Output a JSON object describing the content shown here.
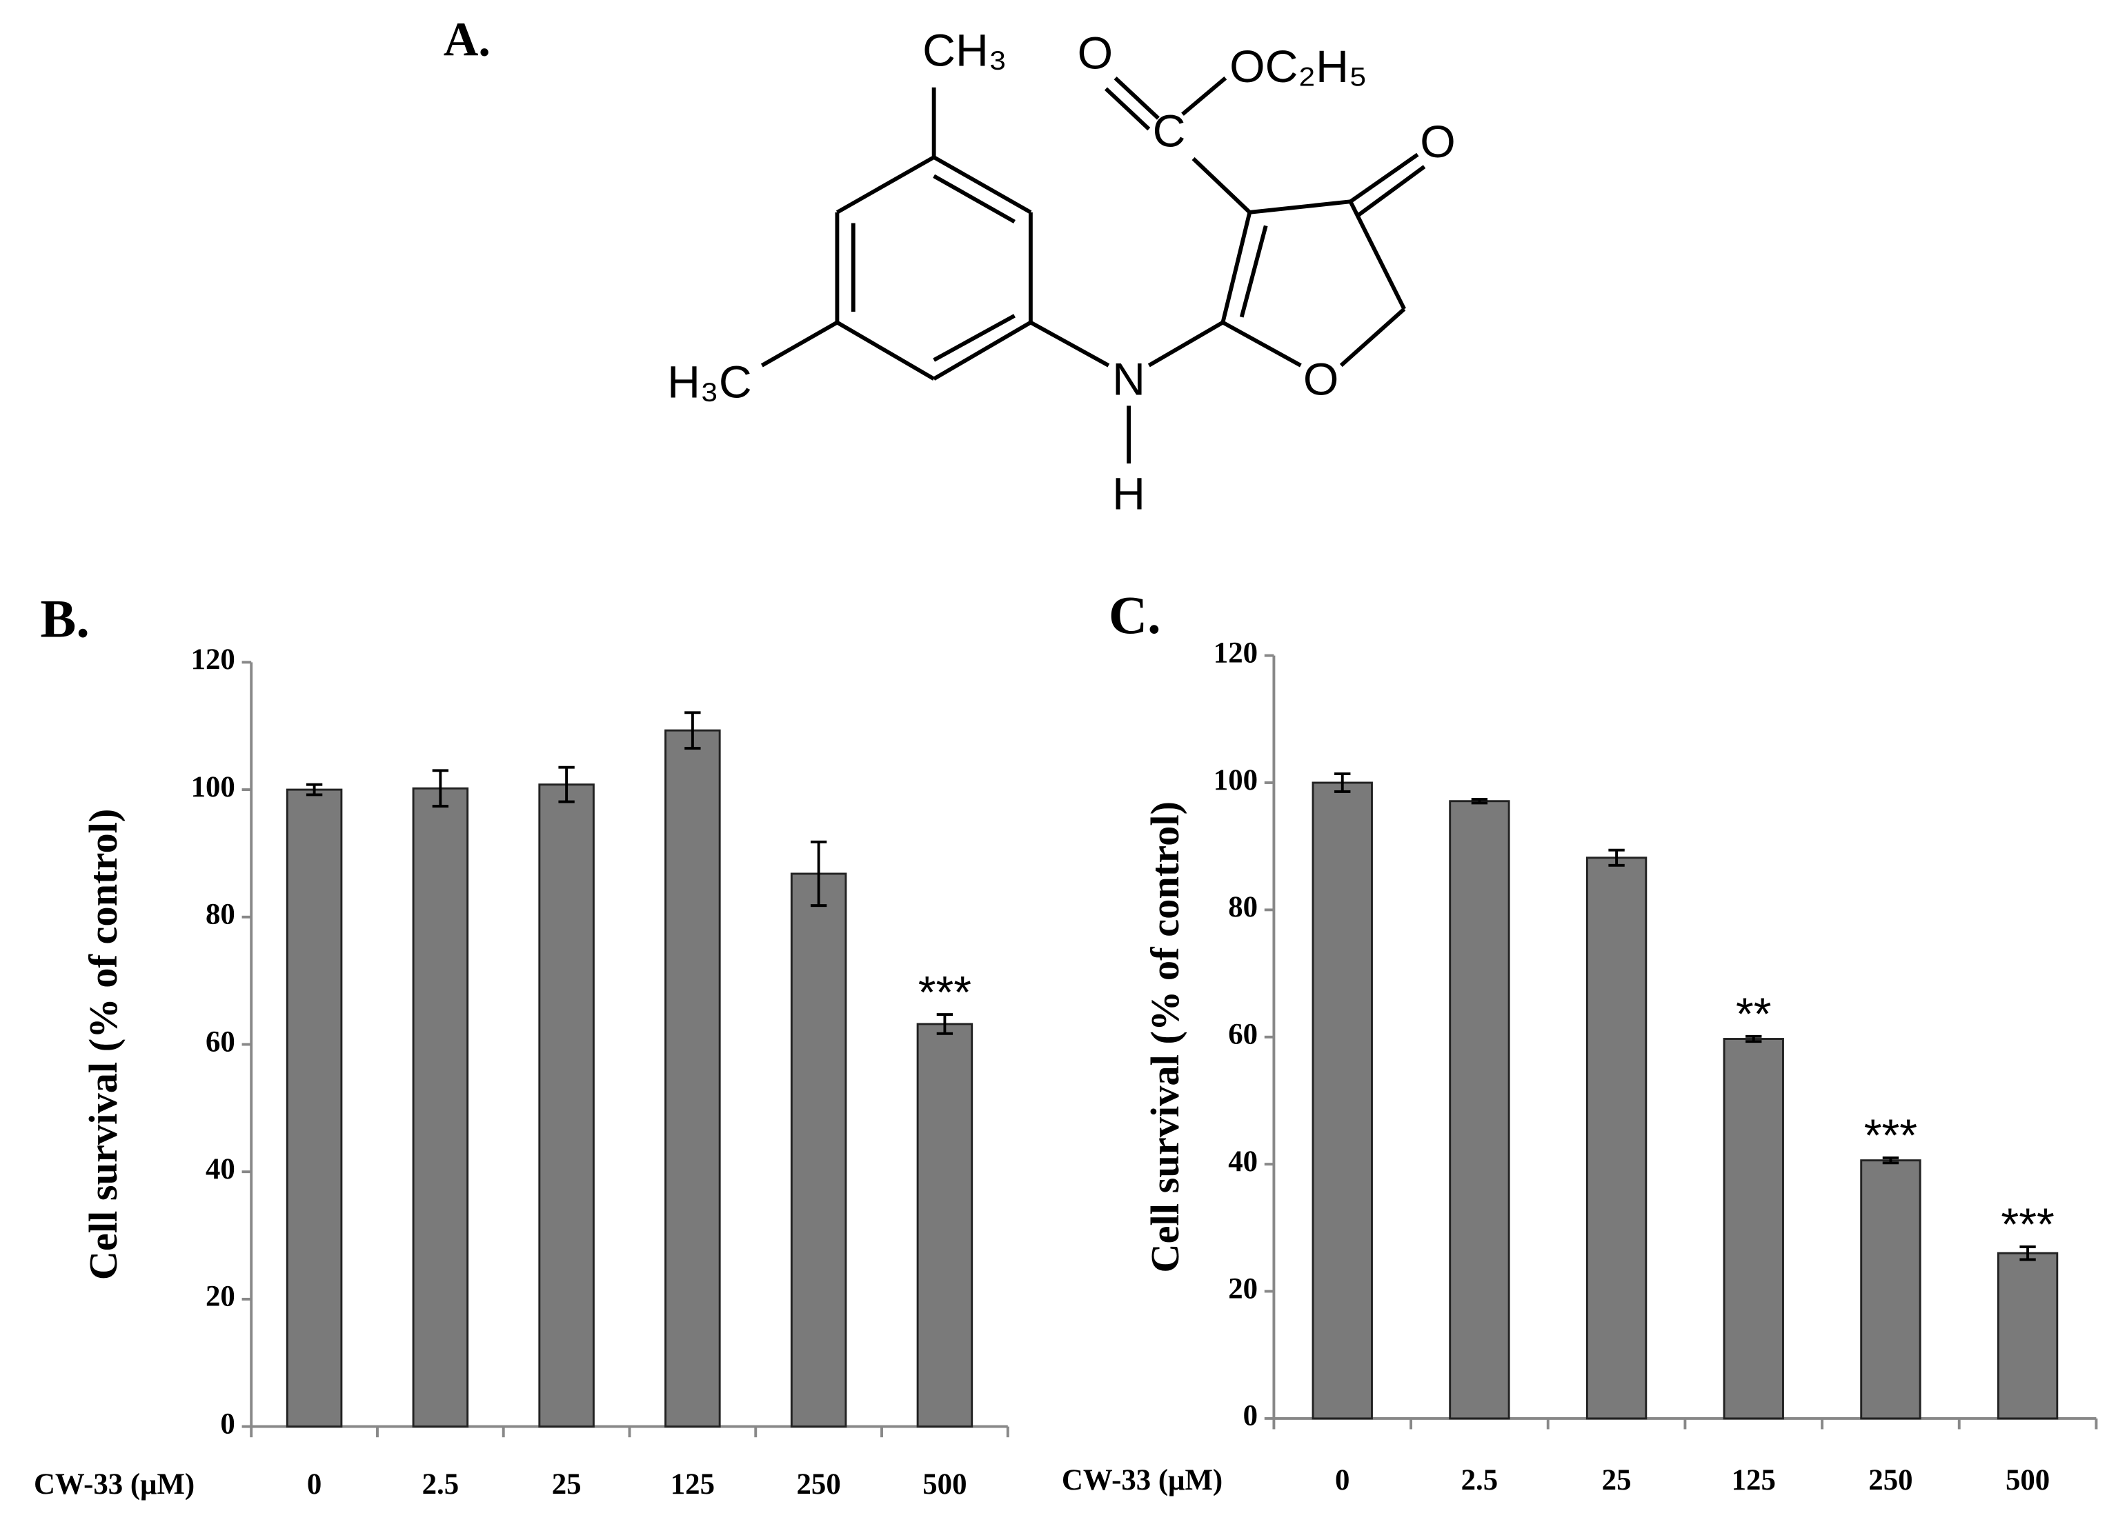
{
  "structure": {
    "panel_label": "A.",
    "labels": [
      "CH₃",
      "O",
      "OC₂H₅",
      "C",
      "O",
      "H₃C",
      "N",
      "O",
      "H"
    ]
  },
  "chart_data": [
    {
      "type": "bar",
      "panel_label": "B.",
      "ylabel": "Cell survival (% of control)",
      "xlabel": "CW-33 (μM)",
      "categories": [
        "0",
        "2.5",
        "25",
        "125",
        "250",
        "500"
      ],
      "values": [
        100,
        100.2,
        100.8,
        109.3,
        86.8,
        63.2
      ],
      "errors": [
        0.8,
        2.8,
        2.7,
        2.8,
        5,
        1.5
      ],
      "annotations": [
        null,
        null,
        null,
        null,
        null,
        "***"
      ],
      "color": "#7a7a7a",
      "ylim": [
        0,
        120
      ],
      "yticks": [
        0,
        20,
        40,
        60,
        80,
        100,
        120
      ]
    },
    {
      "type": "bar",
      "panel_label": "C.",
      "ylabel": "Cell survival (% of control)",
      "xlabel": "CW-33 (μM)",
      "categories": [
        "0",
        "2.5",
        "25",
        "125",
        "250",
        "500"
      ],
      "values": [
        100,
        97.1,
        88.2,
        59.7,
        40.6,
        26.0
      ],
      "errors": [
        1.4,
        0.3,
        1.2,
        0.4,
        0.4,
        1.0
      ],
      "annotations": [
        null,
        null,
        null,
        "**",
        "***",
        "***"
      ],
      "color": "#7a7a7a",
      "ylim": [
        0,
        120
      ],
      "yticks": [
        0,
        20,
        40,
        60,
        80,
        100,
        120
      ]
    }
  ]
}
